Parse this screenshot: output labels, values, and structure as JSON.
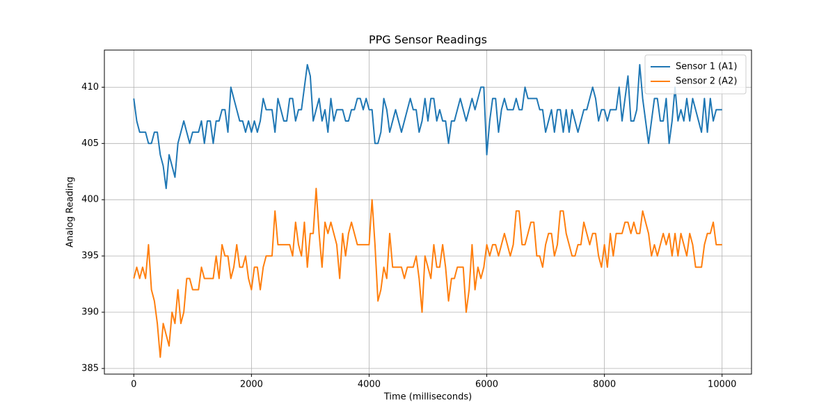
{
  "chart_data": {
    "type": "line",
    "title": "PPG Sensor Readings",
    "xlabel": "Time (milliseconds)",
    "ylabel": "Analog Reading",
    "x": [
      0,
      50,
      100,
      150,
      200,
      250,
      300,
      350,
      400,
      450,
      500,
      550,
      600,
      650,
      700,
      750,
      800,
      850,
      900,
      950,
      1000,
      1050,
      1100,
      1150,
      1200,
      1250,
      1300,
      1350,
      1400,
      1450,
      1500,
      1550,
      1600,
      1650,
      1700,
      1750,
      1800,
      1850,
      1900,
      1950,
      2000,
      2050,
      2100,
      2150,
      2200,
      2250,
      2300,
      2350,
      2400,
      2450,
      2500,
      2550,
      2600,
      2650,
      2700,
      2750,
      2800,
      2850,
      2900,
      2950,
      3000,
      3050,
      3100,
      3150,
      3200,
      3250,
      3300,
      3350,
      3400,
      3450,
      3500,
      3550,
      3600,
      3650,
      3700,
      3750,
      3800,
      3850,
      3900,
      3950,
      4000,
      4050,
      4100,
      4150,
      4200,
      4250,
      4300,
      4350,
      4400,
      4450,
      4500,
      4550,
      4600,
      4650,
      4700,
      4750,
      4800,
      4850,
      4900,
      4950,
      5000,
      5050,
      5100,
      5150,
      5200,
      5250,
      5300,
      5350,
      5400,
      5450,
      5500,
      5550,
      5600,
      5650,
      5700,
      5750,
      5800,
      5850,
      5900,
      5950,
      6000,
      6050,
      6100,
      6150,
      6200,
      6250,
      6300,
      6350,
      6400,
      6450,
      6500,
      6550,
      6600,
      6650,
      6700,
      6750,
      6800,
      6850,
      6900,
      6950,
      7000,
      7050,
      7100,
      7150,
      7200,
      7250,
      7300,
      7350,
      7400,
      7450,
      7500,
      7550,
      7600,
      7650,
      7700,
      7750,
      7800,
      7850,
      7900,
      7950,
      8000,
      8050,
      8100,
      8150,
      8200,
      8250,
      8300,
      8350,
      8400,
      8450,
      8500,
      8550,
      8600,
      8650,
      8700,
      8750,
      8800,
      8850,
      8900,
      8950,
      9000,
      9050,
      9100,
      9150,
      9200,
      9250,
      9300,
      9350,
      9400,
      9450,
      9500,
      9550,
      9600,
      9650,
      9700,
      9750,
      9800,
      9850,
      9900,
      9950,
      10000
    ],
    "series": [
      {
        "name": "Sensor 1 (A1)",
        "color": "#1f77b4",
        "values": [
          409,
          407,
          406,
          406,
          406,
          405,
          405,
          406,
          406,
          404,
          403,
          401,
          404,
          403,
          402,
          405,
          406,
          407,
          406,
          405,
          406,
          406,
          406,
          407,
          405,
          407,
          407,
          405,
          407,
          407,
          408,
          408,
          406,
          410,
          409,
          408,
          407,
          407,
          406,
          407,
          406,
          407,
          406,
          407,
          409,
          408,
          408,
          408,
          406,
          409,
          408,
          407,
          407,
          409,
          409,
          407,
          408,
          408,
          410,
          412,
          411,
          407,
          408,
          409,
          407,
          408,
          406,
          409,
          407,
          408,
          408,
          408,
          407,
          407,
          408,
          408,
          409,
          409,
          408,
          409,
          408,
          408,
          405,
          405,
          406,
          409,
          408,
          406,
          407,
          408,
          407,
          406,
          407,
          408,
          409,
          408,
          408,
          406,
          407,
          409,
          407,
          409,
          409,
          407,
          408,
          407,
          407,
          405,
          407,
          407,
          408,
          409,
          408,
          407,
          408,
          409,
          408,
          409,
          410,
          410,
          404,
          407,
          409,
          409,
          406,
          408,
          409,
          408,
          408,
          408,
          409,
          408,
          408,
          410,
          409,
          409,
          409,
          409,
          408,
          408,
          406,
          407,
          408,
          406,
          408,
          408,
          406,
          408,
          406,
          408,
          407,
          406,
          407,
          408,
          408,
          409,
          410,
          409,
          407,
          408,
          408,
          407,
          408,
          408,
          408,
          410,
          407,
          409,
          411,
          407,
          407,
          408,
          412,
          409,
          407,
          405,
          407,
          409,
          409,
          407,
          407,
          409,
          405,
          407,
          410,
          407,
          408,
          407,
          409,
          407,
          409,
          408,
          407,
          406,
          409,
          406,
          409,
          407,
          408,
          408,
          408
        ]
      },
      {
        "name": "Sensor 2 (A2)",
        "color": "#ff7f0e",
        "values": [
          393,
          394,
          393,
          394,
          393,
          396,
          392,
          391,
          389,
          386,
          389,
          388,
          387,
          390,
          389,
          392,
          389,
          390,
          393,
          393,
          392,
          392,
          392,
          394,
          393,
          393,
          393,
          393,
          395,
          393,
          396,
          395,
          395,
          393,
          394,
          396,
          394,
          394,
          395,
          393,
          392,
          394,
          394,
          392,
          394,
          395,
          395,
          395,
          399,
          396,
          396,
          396,
          396,
          396,
          395,
          398,
          396,
          395,
          398,
          394,
          397,
          397,
          401,
          397,
          394,
          398,
          397,
          398,
          397,
          396,
          393,
          397,
          395,
          397,
          398,
          397,
          396,
          396,
          396,
          396,
          396,
          400,
          396,
          391,
          392,
          394,
          393,
          397,
          394,
          394,
          394,
          394,
          393,
          394,
          394,
          394,
          395,
          393,
          390,
          395,
          394,
          393,
          396,
          394,
          394,
          396,
          394,
          391,
          393,
          393,
          394,
          394,
          394,
          390,
          392,
          396,
          392,
          394,
          393,
          394,
          396,
          395,
          396,
          396,
          395,
          396,
          397,
          396,
          395,
          396,
          399,
          399,
          396,
          396,
          397,
          398,
          398,
          395,
          395,
          394,
          396,
          397,
          397,
          395,
          396,
          399,
          399,
          397,
          396,
          395,
          395,
          396,
          396,
          398,
          397,
          396,
          397,
          397,
          395,
          394,
          396,
          394,
          397,
          395,
          397,
          397,
          397,
          398,
          398,
          397,
          398,
          397,
          397,
          399,
          398,
          397,
          395,
          396,
          395,
          396,
          397,
          396,
          397,
          395,
          397,
          395,
          397,
          396,
          395,
          397,
          396,
          394,
          394,
          394,
          396,
          397,
          397,
          398,
          396,
          396,
          396
        ]
      }
    ],
    "xlim": [
      -500,
      10500
    ],
    "xticks": [
      0,
      2000,
      4000,
      6000,
      8000,
      10000
    ],
    "ylim": [
      384.5,
      413.3
    ],
    "yticks": [
      385,
      390,
      395,
      400,
      405,
      410
    ],
    "grid": true,
    "legend": "upper right"
  }
}
